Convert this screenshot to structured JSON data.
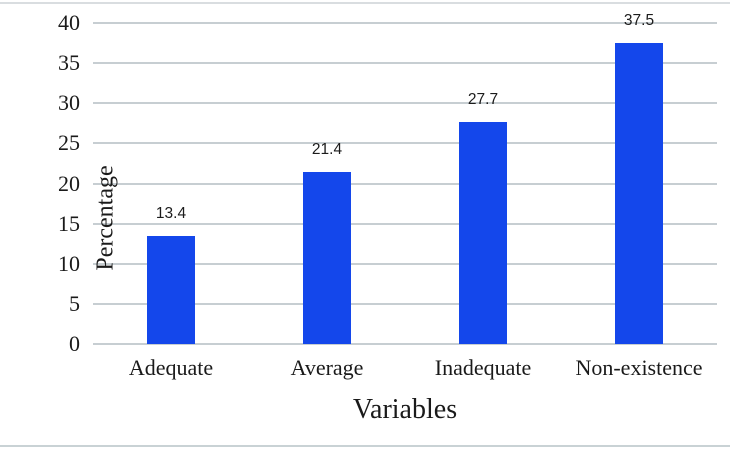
{
  "chart_data": {
    "type": "bar",
    "title": "",
    "categories": [
      "Adequate",
      "Average",
      "Inadequate",
      "Non-existence"
    ],
    "values": [
      13.4,
      21.4,
      27.7,
      37.5
    ],
    "data_labels": [
      "13.4",
      "21.4",
      "27.7",
      "37.5"
    ],
    "xlabel": "Variables",
    "ylabel": "Percentage",
    "ylim": [
      0,
      40
    ],
    "ytick_step": 5,
    "ytick_labels": [
      "0",
      "5",
      "10",
      "15",
      "20",
      "25",
      "30",
      "35",
      "40"
    ],
    "grid": "horizontal",
    "legend": "none",
    "colors": {
      "bar": "#1447eb",
      "gridline": "#c7ced2",
      "text": "#1a1a1a",
      "frame_top": "#d9dde0",
      "frame_bottom": "#c9d2d5",
      "background": "#ffffff"
    }
  }
}
